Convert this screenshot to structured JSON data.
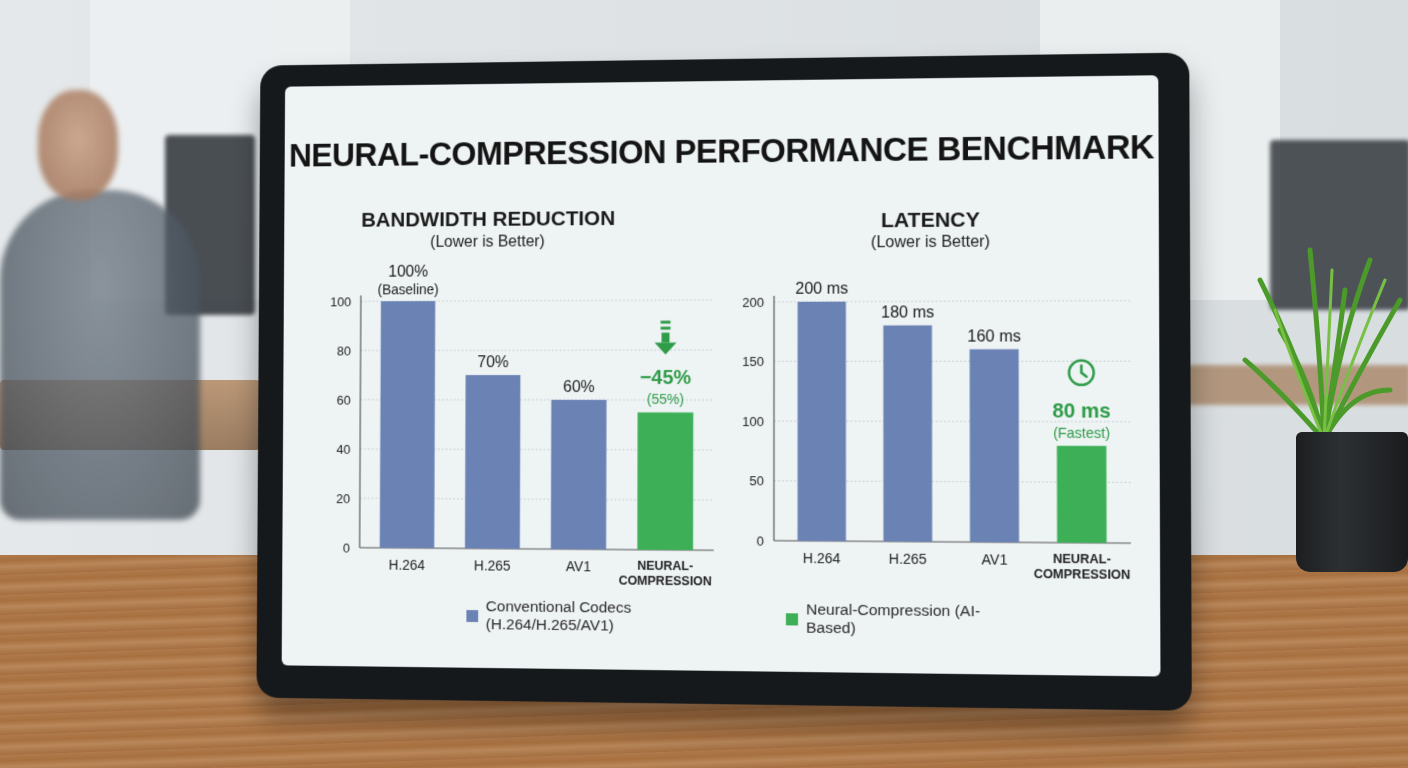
{
  "title": "NEURAL-COMPRESSION PERFORMANCE BENCHMARK",
  "colors": {
    "conventional": "#6b83b4",
    "neural": "#3daf57",
    "neural_text": "#2e9c48"
  },
  "legend": {
    "conventional": "Conventional Codecs (H.264/H.265/AV1)",
    "neural": "Neural-Compression (AI-Based)"
  },
  "chart_data": [
    {
      "type": "bar",
      "title": "BANDWIDTH REDUCTION",
      "subtitle": "(Lower is Better)",
      "categories": [
        "H.264",
        "H.265",
        "AV1",
        "NEURAL-COMPRESSION"
      ],
      "values": [
        100,
        70,
        60,
        55
      ],
      "ylim": [
        0,
        100
      ],
      "yticks": [
        0,
        20,
        40,
        60,
        80,
        100
      ],
      "bar_labels": [
        [
          "100%",
          "(Baseline)"
        ],
        [
          "70%"
        ],
        [
          "60%"
        ],
        [
          "−45%",
          "(55%)"
        ]
      ],
      "highlight_icon": "down-arrow-icon",
      "grid": true
    },
    {
      "type": "bar",
      "title": "LATENCY",
      "subtitle": "(Lower is Better)",
      "categories": [
        "H.264",
        "H.265",
        "AV1",
        "NEURAL-COMPRESSION"
      ],
      "values": [
        200,
        180,
        160,
        80
      ],
      "ylim": [
        0,
        200
      ],
      "yticks": [
        0,
        50,
        100,
        150,
        200
      ],
      "bar_labels": [
        [
          "200 ms"
        ],
        [
          "180 ms"
        ],
        [
          "160 ms"
        ],
        [
          "80 ms",
          "(Fastest)"
        ]
      ],
      "highlight_icon": "clock-icon",
      "grid": true
    }
  ]
}
